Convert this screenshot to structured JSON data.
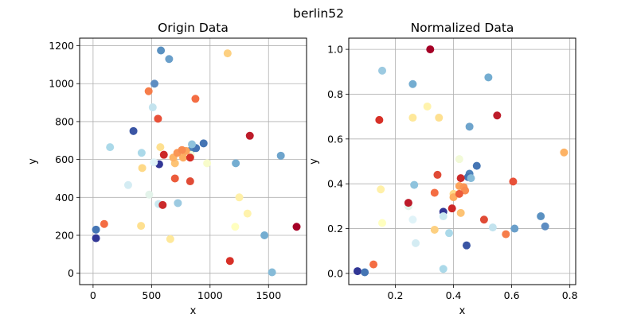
{
  "figure": {
    "suptitle": "berlin52"
  },
  "chart_data": [
    {
      "type": "scatter",
      "title": "Origin Data",
      "xlabel": "x",
      "ylabel": "y",
      "xlim": [
        -115,
        1825
      ],
      "ylim": [
        -60,
        1240
      ],
      "xticks": [
        0,
        500,
        1000,
        1500
      ],
      "yticks": [
        0,
        200,
        400,
        600,
        800,
        1000,
        1200
      ],
      "grid": true,
      "colormap": "RdYlBu",
      "points": [
        {
          "x": 565,
          "y": 575,
          "c": "#313695"
        },
        {
          "x": 25,
          "y": 185,
          "c": "#313695"
        },
        {
          "x": 345,
          "y": 750,
          "c": "#3a55a4"
        },
        {
          "x": 945,
          "y": 685,
          "c": "#4575b4"
        },
        {
          "x": 845,
          "y": 655,
          "c": "#4f84bc"
        },
        {
          "x": 880,
          "y": 660,
          "c": "#4575b4"
        },
        {
          "x": 25,
          "y": 230,
          "c": "#4575b4"
        },
        {
          "x": 525,
          "y": 1000,
          "c": "#5d8dc2"
        },
        {
          "x": 580,
          "y": 1175,
          "c": "#5a91c1"
        },
        {
          "x": 650,
          "y": 1130,
          "c": "#6a9fca"
        },
        {
          "x": 1605,
          "y": 620,
          "c": "#6ea4cc"
        },
        {
          "x": 1220,
          "y": 580,
          "c": "#74add1"
        },
        {
          "x": 1465,
          "y": 200,
          "c": "#74add1"
        },
        {
          "x": 1530,
          "y": 5,
          "c": "#86bbd8"
        },
        {
          "x": 845,
          "y": 680,
          "c": "#8fc3dd"
        },
        {
          "x": 725,
          "y": 370,
          "c": "#9ccae1"
        },
        {
          "x": 145,
          "y": 665,
          "c": "#abd9e9"
        },
        {
          "x": 415,
          "y": 635,
          "c": "#abd9e9"
        },
        {
          "x": 510,
          "y": 875,
          "c": "#c3e3ee"
        },
        {
          "x": 560,
          "y": 365,
          "c": "#c9e8f0"
        },
        {
          "x": 300,
          "y": 465,
          "c": "#d4ecf3"
        },
        {
          "x": 520,
          "y": 585,
          "c": "#e0f3f8"
        },
        {
          "x": 480,
          "y": 415,
          "c": "#e3f3ea"
        },
        {
          "x": 835,
          "y": 625,
          "c": "#f2fad8"
        },
        {
          "x": 975,
          "y": 580,
          "c": "#f8fccb"
        },
        {
          "x": 1215,
          "y": 245,
          "c": "#ffffbf"
        },
        {
          "x": 1320,
          "y": 315,
          "c": "#fff3ad"
        },
        {
          "x": 1250,
          "y": 400,
          "c": "#fff0a8"
        },
        {
          "x": 660,
          "y": 180,
          "c": "#fee89a"
        },
        {
          "x": 410,
          "y": 250,
          "c": "#fee090"
        },
        {
          "x": 420,
          "y": 555,
          "c": "#fed987"
        },
        {
          "x": 575,
          "y": 665,
          "c": "#fee090"
        },
        {
          "x": 1150,
          "y": 1160,
          "c": "#fdd081"
        },
        {
          "x": 700,
          "y": 580,
          "c": "#fdc374"
        },
        {
          "x": 685,
          "y": 610,
          "c": "#fdb366"
        },
        {
          "x": 770,
          "y": 610,
          "c": "#fdae61"
        },
        {
          "x": 795,
          "y": 645,
          "c": "#fca55d"
        },
        {
          "x": 720,
          "y": 635,
          "c": "#fa9656"
        },
        {
          "x": 760,
          "y": 650,
          "c": "#f88c51"
        },
        {
          "x": 475,
          "y": 960,
          "c": "#f67d4a"
        },
        {
          "x": 95,
          "y": 260,
          "c": "#f46d43"
        },
        {
          "x": 875,
          "y": 920,
          "c": "#f46d43"
        },
        {
          "x": 700,
          "y": 500,
          "c": "#ec5c3b"
        },
        {
          "x": 555,
          "y": 815,
          "c": "#e85038"
        },
        {
          "x": 830,
          "y": 485,
          "c": "#e04b36"
        },
        {
          "x": 1170,
          "y": 65,
          "c": "#d73027"
        },
        {
          "x": 830,
          "y": 610,
          "c": "#d73027"
        },
        {
          "x": 605,
          "y": 625,
          "c": "#cc2727"
        },
        {
          "x": 595,
          "y": 360,
          "c": "#cb2a2b"
        },
        {
          "x": 1340,
          "y": 725,
          "c": "#bd1c2a"
        },
        {
          "x": 1740,
          "y": 245,
          "c": "#a50026"
        }
      ]
    },
    {
      "type": "scatter",
      "title": "Normalized Data",
      "xlabel": "x",
      "ylabel": "y",
      "xlim": [
        0.04,
        0.82
      ],
      "ylim": [
        -0.05,
        1.05
      ],
      "xticks": [
        0.2,
        0.4,
        0.6,
        0.8
      ],
      "yticks": [
        0.0,
        0.2,
        0.4,
        0.6,
        0.8,
        1.0
      ],
      "grid": true,
      "colormap": "RdYlBu",
      "points": [
        {
          "x": 0.07,
          "y": 0.01,
          "c": "#313695"
        },
        {
          "x": 0.365,
          "y": 0.275,
          "c": "#313695"
        },
        {
          "x": 0.445,
          "y": 0.125,
          "c": "#3a55a4"
        },
        {
          "x": 0.48,
          "y": 0.48,
          "c": "#4575b4"
        },
        {
          "x": 0.455,
          "y": 0.445,
          "c": "#4f84bc"
        },
        {
          "x": 0.095,
          "y": 0.005,
          "c": "#4575b4"
        },
        {
          "x": 0.45,
          "y": 0.43,
          "c": "#4575b4"
        },
        {
          "x": 0.715,
          "y": 0.21,
          "c": "#5d8dc2"
        },
        {
          "x": 0.7,
          "y": 0.255,
          "c": "#5a91c1"
        },
        {
          "x": 0.61,
          "y": 0.2,
          "c": "#6a9fca"
        },
        {
          "x": 0.455,
          "y": 0.655,
          "c": "#6ea4cc"
        },
        {
          "x": 0.52,
          "y": 0.875,
          "c": "#74add1"
        },
        {
          "x": 0.26,
          "y": 0.845,
          "c": "#74add1"
        },
        {
          "x": 0.46,
          "y": 0.425,
          "c": "#86bbd8"
        },
        {
          "x": 0.265,
          "y": 0.395,
          "c": "#8fc3dd"
        },
        {
          "x": 0.155,
          "y": 0.905,
          "c": "#9ccae1"
        },
        {
          "x": 0.365,
          "y": 0.02,
          "c": "#abd9e9"
        },
        {
          "x": 0.385,
          "y": 0.18,
          "c": "#abd9e9"
        },
        {
          "x": 0.535,
          "y": 0.205,
          "c": "#c3e3ee"
        },
        {
          "x": 0.365,
          "y": 0.255,
          "c": "#c9e8f0"
        },
        {
          "x": 0.27,
          "y": 0.135,
          "c": "#d4ecf3"
        },
        {
          "x": 0.26,
          "y": 0.24,
          "c": "#e0f3f8"
        },
        {
          "x": 0.245,
          "y": 0.3,
          "c": "#e3f3ea"
        },
        {
          "x": 0.42,
          "y": 0.51,
          "c": "#f2fad8"
        },
        {
          "x": 0.155,
          "y": 0.225,
          "c": "#ffffbf"
        },
        {
          "x": 0.31,
          "y": 0.745,
          "c": "#fff3ad"
        },
        {
          "x": 0.15,
          "y": 0.375,
          "c": "#fff0a8"
        },
        {
          "x": 0.26,
          "y": 0.695,
          "c": "#fee89a"
        },
        {
          "x": 0.35,
          "y": 0.695,
          "c": "#fee090"
        },
        {
          "x": 0.4,
          "y": 0.355,
          "c": "#fed987"
        },
        {
          "x": 0.335,
          "y": 0.195,
          "c": "#fdd081"
        },
        {
          "x": 0.425,
          "y": 0.27,
          "c": "#fdc374"
        },
        {
          "x": 0.78,
          "y": 0.54,
          "c": "#fdb366"
        },
        {
          "x": 0.4,
          "y": 0.34,
          "c": "#fdae61"
        },
        {
          "x": 0.42,
          "y": 0.39,
          "c": "#fca55d"
        },
        {
          "x": 0.435,
          "y": 0.385,
          "c": "#fa9656"
        },
        {
          "x": 0.44,
          "y": 0.37,
          "c": "#f88c51"
        },
        {
          "x": 0.58,
          "y": 0.175,
          "c": "#f67d4a"
        },
        {
          "x": 0.125,
          "y": 0.04,
          "c": "#f46d43"
        },
        {
          "x": 0.335,
          "y": 0.36,
          "c": "#f46d43"
        },
        {
          "x": 0.42,
          "y": 0.355,
          "c": "#ec5c3b"
        },
        {
          "x": 0.605,
          "y": 0.41,
          "c": "#e85038"
        },
        {
          "x": 0.345,
          "y": 0.44,
          "c": "#e04b36"
        },
        {
          "x": 0.505,
          "y": 0.24,
          "c": "#e04b36"
        },
        {
          "x": 0.145,
          "y": 0.685,
          "c": "#d73027"
        },
        {
          "x": 0.395,
          "y": 0.29,
          "c": "#cc2727"
        },
        {
          "x": 0.425,
          "y": 0.425,
          "c": "#cb2a2b"
        },
        {
          "x": 0.245,
          "y": 0.315,
          "c": "#bd1c2a"
        },
        {
          "x": 0.55,
          "y": 0.705,
          "c": "#bd1c2a"
        },
        {
          "x": 0.32,
          "y": 1.0,
          "c": "#a50026"
        }
      ]
    }
  ]
}
